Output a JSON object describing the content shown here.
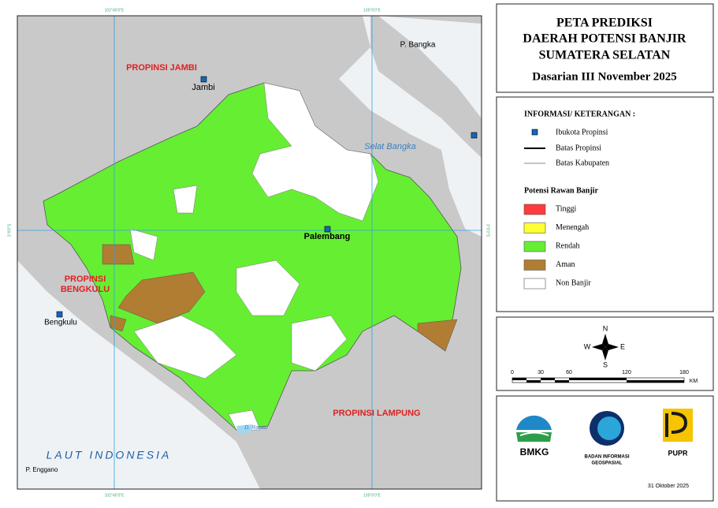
{
  "map": {
    "grid_labels": [
      "102°45'0\"E",
      "105°0'0\"E",
      "3°0'0\"S"
    ],
    "places": {
      "jambi_prov": "PROPINSI JAMBI",
      "jambi": "Jambi",
      "bangka": "P. Bangka",
      "selat": "Selat Bangka",
      "palembang": "Palembang",
      "bengkulu_prov_1": "PROPINSI",
      "bengkulu_prov_2": "BENGKULU",
      "bengkulu": "Bengkulu",
      "laut": "LAUT INDONESIA",
      "enggano": "P. Enggano",
      "lampung": "PROPINSI LAMPUNG",
      "ranau": "D. Ranau"
    }
  },
  "title": {
    "line1": "PETA PREDIKSI",
    "line2": "DAERAH POTENSI BANJIR",
    "line3": "SUMATERA SELATAN",
    "period": "Dasarian III November 2025"
  },
  "legend": {
    "heading": "INFORMASI/ KETERANGAN :",
    "info": [
      "Ibukota Propinsi",
      "Batas Propinsi",
      "Batas Kabupaten"
    ],
    "flood_heading": "Potensi Rawan Banjir",
    "classes": [
      {
        "label": "Tinggi",
        "color": "#ff3b3b"
      },
      {
        "label": "Menengah",
        "color": "#ffff33"
      },
      {
        "label": "Rendah",
        "color": "#66ee33"
      },
      {
        "label": "Aman",
        "color": "#b07d32"
      },
      {
        "label": "Non Banjir",
        "color": "#ffffff"
      }
    ]
  },
  "compass": {
    "n": "N",
    "s": "S",
    "e": "E",
    "w": "W"
  },
  "scale": {
    "labels": [
      "0",
      "30",
      "60",
      "120",
      "180"
    ],
    "unit": "KM"
  },
  "logos": {
    "bmkg": "BMKG",
    "big_1": "BADAN INFORMASI",
    "big_2": "GEOSPASIAL",
    "pupr": "PUPR"
  },
  "date": "31 Oktober 2025"
}
